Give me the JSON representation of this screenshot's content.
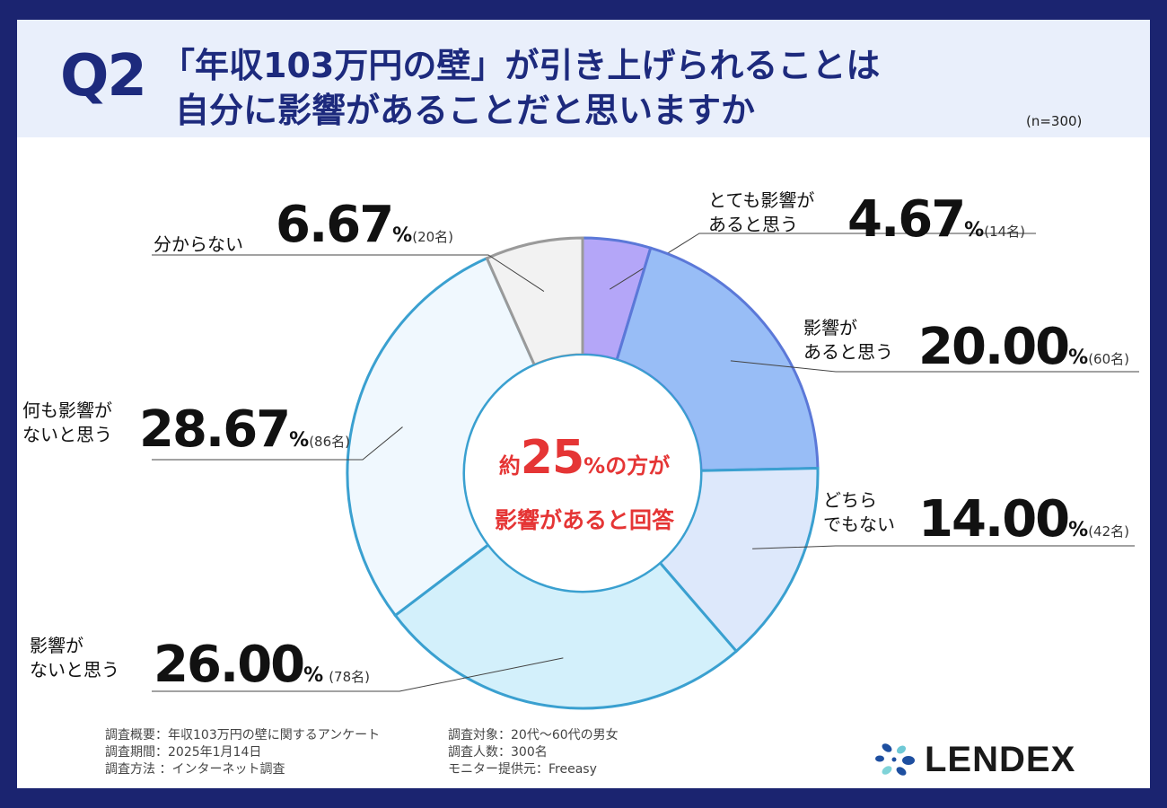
{
  "header": {
    "q_label": "Q2",
    "title_line1": "「年収103万円の壁」が引き上げられることは",
    "title_line2": "自分に影響があることだと思いますか",
    "n": "(n=300)"
  },
  "chart_data": {
    "type": "pie",
    "variant": "donut",
    "title": "「年収103万円の壁」が引き上げられることは自分に影響があることだと思いますか",
    "n": 300,
    "slices": [
      {
        "label": "とても影響があると思う",
        "label_lines": [
          "とても影響が",
          "あると思う"
        ],
        "value": 4.67,
        "value_text": "4.67",
        "count": "(14名)",
        "color": "#b4a6f8"
      },
      {
        "label": "影響があると思う",
        "label_lines": [
          "影響が",
          "あると思う"
        ],
        "value": 20.0,
        "value_text": "20.00",
        "count": "(60名)",
        "color": "#98bdf6"
      },
      {
        "label": "どちらでもない",
        "label_lines": [
          "どちら",
          "でもない"
        ],
        "value": 14.0,
        "value_text": "14.00",
        "count": "(42名)",
        "color": "#dde8fb"
      },
      {
        "label": "影響がないと思う",
        "label_lines": [
          "影響が",
          "ないと思う"
        ],
        "value": 26.0,
        "value_text": "26.00",
        "count": "(78名)",
        "color": "#d3f0fb"
      },
      {
        "label": "何も影響がないと思う",
        "label_lines": [
          "何も影響が",
          "ないと思う"
        ],
        "value": 28.67,
        "value_text": "28.67",
        "count": "(86名)",
        "color": "#f0f8fe"
      },
      {
        "label": "分からない",
        "label_lines": [
          "分からない"
        ],
        "value": 6.67,
        "value_text": "6.67",
        "count": "(20名)",
        "color": "#f2f2f2"
      }
    ],
    "percent_symbol": "%",
    "center": {
      "prefix": "約",
      "number": "25",
      "suffix": "%の方が",
      "line2": "影響があると回答"
    }
  },
  "footer": {
    "col1": [
      "調査概要：年収103万円の壁に関するアンケート",
      "調査期間：2025年1月14日",
      "調査方法 ：インターネット調査"
    ],
    "col2": [
      "調査対象：20代〜60代の男女",
      "調査人数：300名",
      "モニター提供元：Freeasy"
    ]
  },
  "logo": {
    "text": "LENDEX",
    "icon": "lendex-logo-icon"
  },
  "colors": {
    "navy": "#1d2a7d",
    "accent_red": "#e53535",
    "border_blue": "#3aa0d0",
    "border_purple": "#5b78d8",
    "border_gray": "#9a9a9a"
  }
}
